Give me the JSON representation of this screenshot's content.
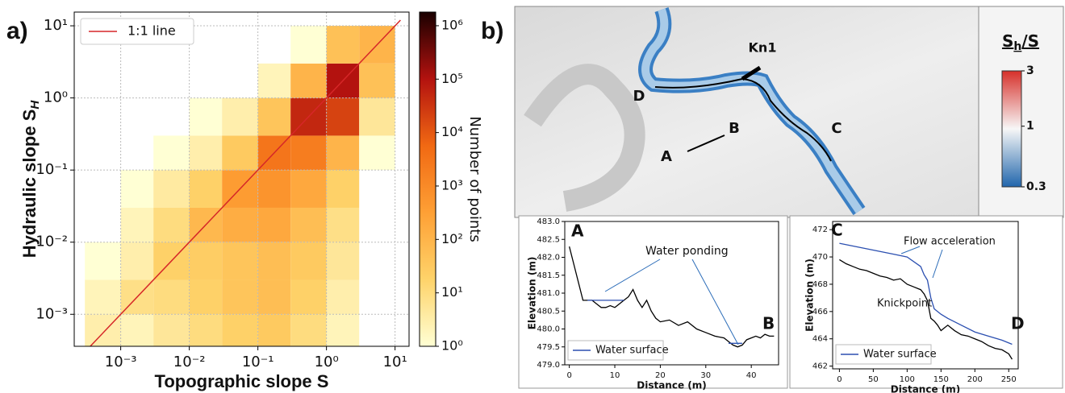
{
  "panel_labels": [
    "a)",
    "b)"
  ],
  "chart_data": [
    {
      "type": "heatmap",
      "xlabel": "Topographic slope S",
      "ylabel": "Hydraulic slope S",
      "ylabel_sub": "H",
      "xscale": "log",
      "yscale": "log",
      "xlim": [
        0.00021,
        16
      ],
      "ylim": [
        0.00036,
        15.5
      ],
      "xticks": [
        {
          "value": 0.001,
          "label": "10⁻³"
        },
        {
          "value": 0.01,
          "label": "10⁻²"
        },
        {
          "value": 0.1,
          "label": "10⁻¹"
        },
        {
          "value": 1,
          "label": "10⁰"
        },
        {
          "value": 10,
          "label": "10¹"
        }
      ],
      "yticks": [
        {
          "value": 0.001,
          "label": "10⁻³"
        },
        {
          "value": 0.01,
          "label": "10⁻²"
        },
        {
          "value": 0.1,
          "label": "10⁻¹"
        },
        {
          "value": 1,
          "label": "10⁰"
        },
        {
          "value": 10,
          "label": "10¹"
        }
      ],
      "grid": true,
      "xbins": [
        0.0003,
        0.001,
        0.003,
        0.01,
        0.03,
        0.1,
        0.3,
        1,
        3,
        10
      ],
      "ybins": [
        0.0003,
        0.001,
        0.003,
        0.01,
        0.03,
        0.1,
        0.3,
        1,
        3,
        10
      ],
      "counts": [
        [
          3,
          2,
          5,
          10,
          20,
          30,
          10,
          2,
          0
        ],
        [
          2,
          8,
          10,
          20,
          40,
          60,
          20,
          3,
          0
        ],
        [
          1,
          3,
          20,
          25,
          40,
          60,
          30,
          5,
          0
        ],
        [
          0,
          2,
          10,
          80,
          150,
          200,
          60,
          8,
          0
        ],
        [
          0,
          1,
          4,
          20,
          400,
          600,
          200,
          20,
          0
        ],
        [
          0,
          0,
          1,
          3,
          30,
          3000,
          2000,
          100,
          1
        ],
        [
          0,
          0,
          0,
          1,
          3,
          40,
          50000,
          20000,
          5
        ],
        [
          0,
          0,
          0,
          0,
          0,
          2,
          100,
          100000,
          50
        ],
        [
          0,
          0,
          0,
          0,
          0,
          0,
          1,
          50,
          100
        ]
      ],
      "colormap": [
        "#ffffd4",
        "#fed36a",
        "#fea035",
        "#f16913",
        "#b3120f",
        "#1a0000"
      ],
      "colorbar": {
        "label": "Number of points",
        "lim": [
          1,
          1800000
        ],
        "ticks": [
          {
            "value": 1,
            "label": "10⁰"
          },
          {
            "value": 10,
            "label": "10¹"
          },
          {
            "value": 100,
            "label": "10²"
          },
          {
            "value": 1000,
            "label": "10³"
          },
          {
            "value": 10000,
            "label": "10⁴"
          },
          {
            "value": 100000,
            "label": "10⁵"
          },
          {
            "value": 1000000,
            "label": "10⁶"
          }
        ]
      },
      "line": {
        "name": "1:1 line",
        "color": "#d62728",
        "x": [
          0.00036,
          12
        ],
        "y": [
          0.00036,
          12
        ]
      },
      "legend": "upper left"
    },
    {
      "type": "line",
      "xlabel": "Distance (m)",
      "ylabel": "Elevation (m)",
      "xlim": [
        -1,
        46
      ],
      "ylim": [
        479,
        483
      ],
      "xticks": [
        0,
        10,
        20,
        30,
        40
      ],
      "yticks": [
        {
          "value": 479,
          "label": "479.0"
        },
        {
          "value": 479.5,
          "label": "479.5"
        },
        {
          "value": 480,
          "label": "480.0"
        },
        {
          "value": 480.5,
          "label": "480.5"
        },
        {
          "value": 481,
          "label": "481.0"
        },
        {
          "value": 481.5,
          "label": "481.5"
        },
        {
          "value": 482,
          "label": "482.0"
        },
        {
          "value": 482.5,
          "label": "482.5"
        },
        {
          "value": 483,
          "label": "483.0"
        }
      ],
      "series": [
        {
          "color": "#000000",
          "x": [
            0,
            1,
            2,
            3,
            4,
            5,
            6,
            7,
            8,
            9,
            10,
            11,
            12,
            13,
            14,
            15,
            16,
            17,
            18,
            19,
            20,
            22,
            24,
            26,
            28,
            30,
            32,
            34,
            35,
            36,
            37,
            38,
            39,
            40,
            41,
            42,
            43,
            44,
            45
          ],
          "values": [
            482.3,
            481.8,
            481.3,
            480.8,
            480.8,
            480.8,
            480.7,
            480.6,
            480.6,
            480.65,
            480.6,
            480.7,
            480.8,
            480.9,
            481.1,
            480.8,
            480.6,
            480.8,
            480.5,
            480.3,
            480.2,
            480.25,
            480.1,
            480.2,
            480.0,
            479.9,
            479.8,
            479.75,
            479.65,
            479.55,
            479.5,
            479.55,
            479.7,
            479.75,
            479.8,
            479.75,
            479.85,
            479.8,
            479.8
          ]
        },
        {
          "name": "Water surface",
          "color": "#2b4fb0",
          "x": [
            4,
            12,
            24,
            35,
            38
          ],
          "values": [
            480.8,
            480.8,
            null,
            479.6,
            479.6
          ]
        }
      ],
      "annotations": [
        "A",
        "B",
        "Water ponding"
      ],
      "legend": "lower left"
    },
    {
      "type": "line",
      "xlabel": "Distance (m)",
      "ylabel": "Elevation (m)",
      "xlim": [
        -10,
        264
      ],
      "ylim": [
        461.8,
        472.6
      ],
      "xticks": [
        0,
        50,
        100,
        150,
        200,
        250
      ],
      "yticks": [
        462,
        464,
        466,
        468,
        470,
        472
      ],
      "series": [
        {
          "color": "#000000",
          "x": [
            0,
            10,
            20,
            30,
            40,
            50,
            60,
            70,
            80,
            90,
            100,
            110,
            120,
            125,
            130,
            135,
            140,
            145,
            150,
            160,
            170,
            180,
            190,
            200,
            210,
            220,
            230,
            240,
            250,
            255
          ],
          "values": [
            469.8,
            469.5,
            469.3,
            469.1,
            469.0,
            468.8,
            468.6,
            468.5,
            468.3,
            468.4,
            468.0,
            467.8,
            467.6,
            467.3,
            466.8,
            465.5,
            465.3,
            465.0,
            464.6,
            465.0,
            464.6,
            464.3,
            464.2,
            464.0,
            463.8,
            463.5,
            463.3,
            463.2,
            462.9,
            462.5
          ]
        },
        {
          "name": "Water surface",
          "color": "#2b4fb0",
          "x": [
            0,
            20,
            40,
            60,
            80,
            100,
            120,
            125,
            130,
            135,
            140,
            150,
            160,
            180,
            200,
            220,
            240,
            255
          ],
          "values": [
            471.0,
            470.8,
            470.6,
            470.4,
            470.2,
            470.0,
            469.3,
            468.7,
            468.3,
            467.0,
            466.2,
            465.8,
            465.5,
            465.0,
            464.5,
            464.2,
            463.9,
            463.6
          ]
        }
      ],
      "annotations": [
        "C",
        "D",
        "Knickpoint",
        "Flow acceleration"
      ],
      "legend": "lower left"
    }
  ],
  "map": {
    "labels": [
      "Kn1",
      "A",
      "B",
      "C",
      "D"
    ],
    "legend_title": [
      "S",
      "h",
      "/S"
    ],
    "colorbar": {
      "lim": [
        0.3,
        3
      ],
      "ticks": [
        3,
        1,
        0.3
      ],
      "colors": [
        "#2166ac",
        "#f7f7f7",
        "#d6302a"
      ]
    }
  }
}
